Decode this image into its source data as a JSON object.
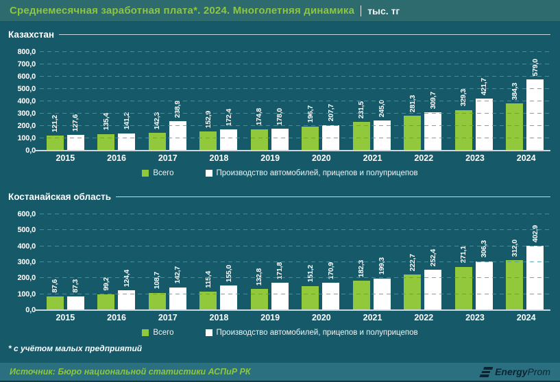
{
  "header": {
    "title": "Среднемесячная заработная плата*. 2024. Многолетняя динамика",
    "unit": "тыс. тг"
  },
  "colors": {
    "background": "#165a6a",
    "header_bg": "#2e6b6f",
    "footer_bg": "#2b7080",
    "accent_green": "#8dc63f",
    "bar_green": "#92c83c",
    "bar_white": "#ffffff",
    "grid": "#4a98ac",
    "text": "#ffffff",
    "logo_dark": "#0d2331"
  },
  "chart_data": [
    {
      "type": "bar",
      "title": "Казахстан",
      "categories": [
        "2015",
        "2016",
        "2017",
        "2018",
        "2019",
        "2020",
        "2021",
        "2022",
        "2023",
        "2024"
      ],
      "series": [
        {
          "name": "Всего",
          "color": "#92c83c",
          "values": [
            121.2,
            135.4,
            142.3,
            152.9,
            174.8,
            196.7,
            231.5,
            281.3,
            329.3,
            384.3
          ]
        },
        {
          "name": "Производство автомобилей, прицепов и полуприцепов",
          "color": "#ffffff",
          "values": [
            127.6,
            141.2,
            238.9,
            172.4,
            178.0,
            207.7,
            245.0,
            309.7,
            421.7,
            579.0
          ]
        }
      ],
      "ylabel": "",
      "xlabel": "",
      "ylim": [
        0,
        800
      ],
      "ytick_step": 100,
      "grid": true,
      "legend_position": "bottom",
      "value_labels_rotated": true,
      "decimal_separator": ","
    },
    {
      "type": "bar",
      "title": "Костанайская область",
      "categories": [
        "2015",
        "2016",
        "2017",
        "2018",
        "2019",
        "2020",
        "2021",
        "2022",
        "2023",
        "2024"
      ],
      "series": [
        {
          "name": "Всего",
          "color": "#92c83c",
          "values": [
            87.6,
            99.2,
            108.7,
            115.4,
            132.8,
            151.2,
            182.3,
            222.7,
            271.1,
            312.0
          ]
        },
        {
          "name": "Производство автомобилей, прицепов и полуприцепов",
          "color": "#ffffff",
          "values": [
            87.3,
            124.4,
            142.7,
            155.0,
            171.8,
            170.9,
            199.3,
            252.4,
            306.3,
            402.9
          ]
        }
      ],
      "ylabel": "",
      "xlabel": "",
      "ylim": [
        0,
        600
      ],
      "ytick_step": 100,
      "grid": true,
      "legend_position": "bottom",
      "value_labels_rotated": true,
      "decimal_separator": ","
    }
  ],
  "footnote": "* с учётом малых предприятий",
  "footer": {
    "source": "Источник: Бюро национальной статистики АСПиР РК",
    "logo_bold": "Energy",
    "logo_regular": "Prom"
  }
}
